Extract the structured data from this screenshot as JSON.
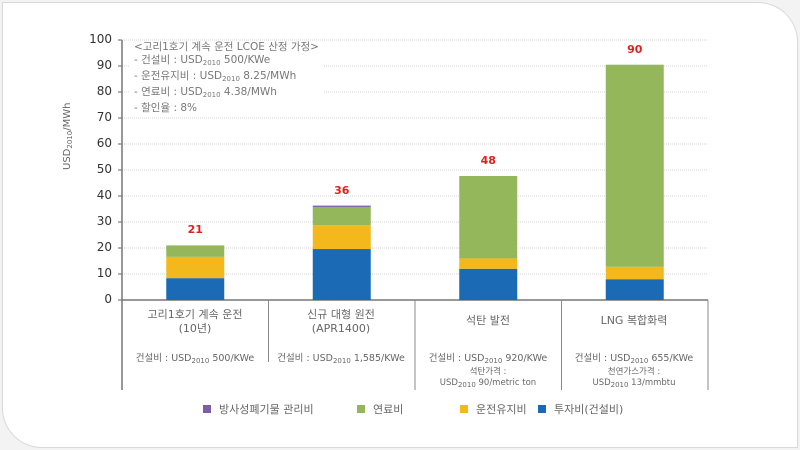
{
  "chart_data": {
    "type": "bar",
    "stacked": true,
    "ylabel": "USD2010/MWh",
    "ylabel_parts": {
      "prefix": "USD",
      "sub": "2010",
      "suffix": "/MWh"
    },
    "ylim": [
      0,
      100
    ],
    "yticks": [
      0,
      10,
      20,
      30,
      40,
      50,
      60,
      70,
      80,
      90,
      100
    ],
    "grid": true,
    "legend_position": "bottom",
    "categories": [
      {
        "name": [
          "고리1호기 계속 운전",
          "(10년)"
        ],
        "cost": {
          "prefix": "건설비 : USD",
          "sub": "2010",
          "suffix": " 500/KWe"
        },
        "fuel": null
      },
      {
        "name": [
          "신규 대형 원전",
          "(APR1400)"
        ],
        "cost": {
          "prefix": "건설비 : USD",
          "sub": "2010",
          "suffix": " 1,585/KWe"
        },
        "fuel": null
      },
      {
        "name": [
          "석탄 발전",
          ""
        ],
        "cost": {
          "prefix": "건설비 : USD",
          "sub": "2010",
          "suffix": " 920/KWe"
        },
        "fuel": {
          "title": "석탄가격 :",
          "prefix": "USD",
          "sub": "2010",
          "suffix": " 90/metric ton"
        }
      },
      {
        "name": [
          "LNG 복합화력",
          ""
        ],
        "cost": {
          "prefix": "건설비 : USD",
          "sub": "2010",
          "suffix": " 655/KWe"
        },
        "fuel": {
          "title": "천연가스가격 :",
          "prefix": "USD",
          "sub": "2010",
          "suffix": " 13/mmbtu"
        }
      }
    ],
    "series": [
      {
        "name": "투자비(건설비)",
        "color": "#1a6ab5",
        "values": [
          8.4,
          19.6,
          12.0,
          8.0
        ]
      },
      {
        "name": "운전유지비",
        "color": "#f2b81c",
        "values": [
          8.2,
          9.2,
          4.0,
          4.8
        ]
      },
      {
        "name": "연료비",
        "color": "#93b75a",
        "values": [
          4.4,
          7.0,
          31.7,
          77.7
        ]
      },
      {
        "name": "방사성폐기물 관리비",
        "color": "#7b5ea6",
        "values": [
          0,
          0.5,
          0,
          0
        ]
      }
    ],
    "totals": [
      "21",
      "36",
      "48",
      "90"
    ],
    "total_values": [
      21,
      36,
      48,
      90
    ],
    "total_color": "#e02020",
    "annotation": {
      "title": "<고리1호기 계속 운전 LCOE 산정 가정>",
      "items": [
        {
          "prefix": "-   건설비 : USD",
          "sub": "2010",
          "suffix": " 500/KWe"
        },
        {
          "prefix": "-   운전유지비 : USD",
          "sub": "2010",
          "suffix": " 8.25/MWh"
        },
        {
          "prefix": "-   연료비 : USD",
          "sub": "2010",
          "suffix": " 4.38/MWh"
        },
        {
          "prefix": "-   할인율 : 8%",
          "sub": "",
          "suffix": ""
        }
      ]
    },
    "legend_order": [
      "방사성폐기물 관리비",
      "연료비",
      "운전유지비",
      "투자비(건설비)"
    ]
  }
}
